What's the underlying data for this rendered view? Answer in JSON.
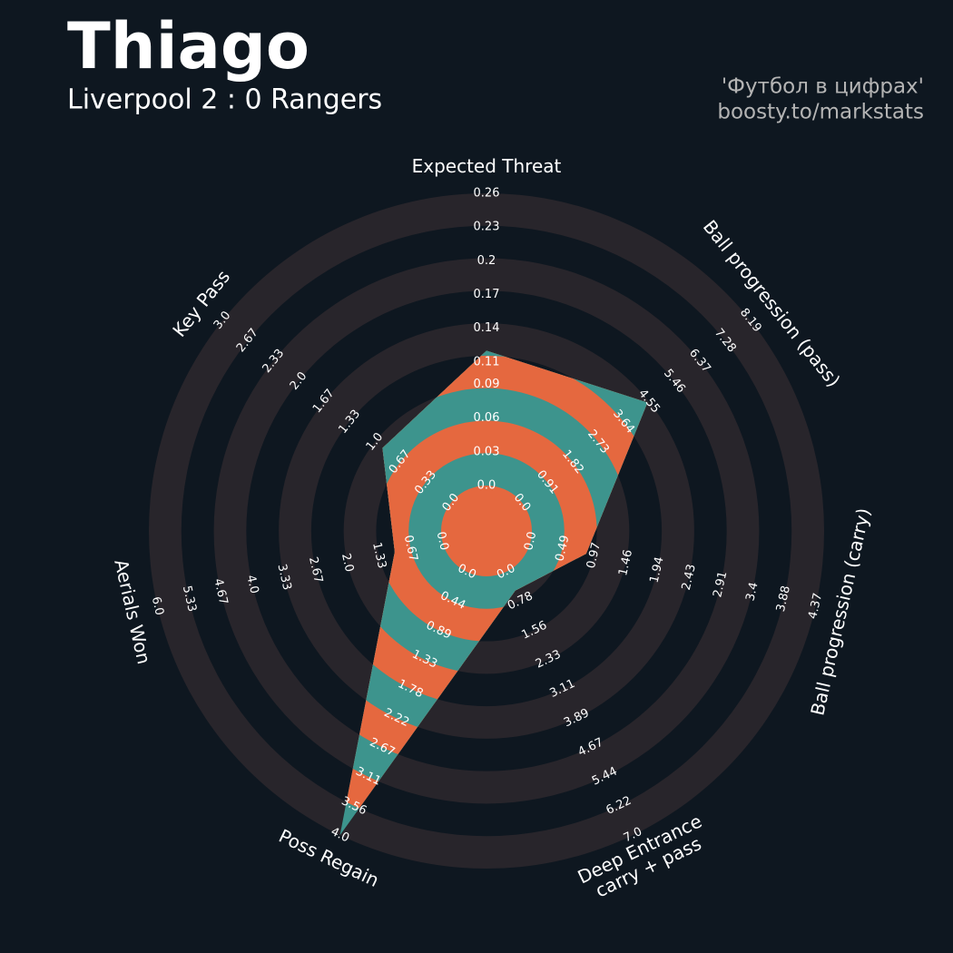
{
  "chart_data": {
    "type": "radar",
    "title": "Thiago",
    "subtitle": "Liverpool 2 : 0 Rangers",
    "credits": [
      "'Футбол в цифрах'",
      "boosty.to/markstats"
    ],
    "categories": [
      "Expected Threat",
      "Ball progression (pass)",
      "Ball progression (carry)",
      "Deep Entrance\ncarry + pass",
      "Poss Regain",
      "Aerials Won",
      "Key Pass"
    ],
    "rlims": [
      [
        0,
        0.26
      ],
      [
        0,
        8.19
      ],
      [
        0,
        4.37
      ],
      [
        0,
        7
      ],
      [
        0,
        4
      ],
      [
        0,
        6
      ],
      [
        0,
        3
      ]
    ],
    "rticks": [
      [
        {
          "value": 0,
          "label": "0.0"
        },
        0.03,
        0.06,
        0.09,
        0.11,
        0.14,
        0.17,
        0.2,
        0.23,
        0.26
      ],
      [
        {
          "value": 0,
          "label": "0.0"
        },
        0.91,
        1.82,
        2.73,
        3.64,
        4.55,
        5.46,
        6.37,
        7.28,
        8.19
      ],
      [
        {
          "value": 0,
          "label": "0.0"
        },
        0.49,
        0.97,
        1.46,
        1.94,
        2.43,
        2.91,
        3.4,
        3.88,
        4.37
      ],
      [
        {
          "value": 0,
          "label": "0.0"
        },
        0.78,
        1.56,
        2.33,
        3.11,
        3.89,
        4.67,
        5.44,
        6.22,
        {
          "value": 7,
          "label": "7.0"
        }
      ],
      [
        {
          "value": 0,
          "label": "0.0"
        },
        0.44,
        0.89,
        1.33,
        1.78,
        2.22,
        2.67,
        3.11,
        3.56,
        {
          "value": 4,
          "label": "4.0"
        }
      ],
      [
        {
          "value": 0,
          "label": "0.0"
        },
        0.67,
        1.33,
        {
          "value": 2,
          "label": "2.0"
        },
        2.67,
        3.33,
        {
          "value": 4,
          "label": "4.0"
        },
        4.67,
        5.33,
        {
          "value": 6,
          "label": "6.0"
        }
      ],
      [
        {
          "value": 0,
          "label": "0.0"
        },
        0.33,
        0.67,
        {
          "value": 1,
          "label": "1.0"
        },
        1.33,
        1.67,
        {
          "value": 2,
          "label": "2.0"
        },
        2.33,
        2.67,
        {
          "value": 3,
          "label": "3.0"
        }
      ]
    ],
    "series": [
      {
        "values": [
          0.12,
          4.5,
          0.85,
          0.5,
          4,
          1,
          0.9
        ]
      }
    ],
    "ring_colors": {
      "inside": [
        "#e5683f",
        "#3d948d"
      ],
      "outside": [
        "#0e1720",
        "#28252b"
      ]
    }
  }
}
